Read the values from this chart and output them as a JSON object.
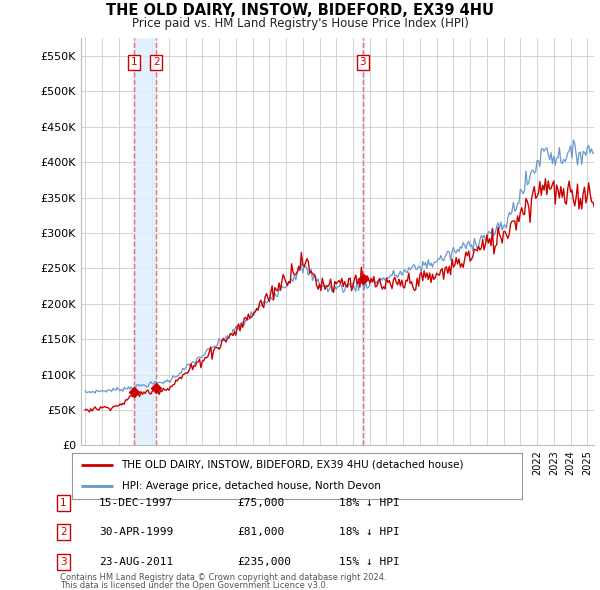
{
  "title": "THE OLD DAIRY, INSTOW, BIDEFORD, EX39 4HU",
  "subtitle": "Price paid vs. HM Land Registry's House Price Index (HPI)",
  "ylim": [
    0,
    575000
  ],
  "yticks": [
    0,
    50000,
    100000,
    150000,
    200000,
    250000,
    300000,
    350000,
    400000,
    450000,
    500000,
    550000
  ],
  "ytick_labels": [
    "£0",
    "£50K",
    "£100K",
    "£150K",
    "£200K",
    "£250K",
    "£300K",
    "£350K",
    "£400K",
    "£450K",
    "£500K",
    "£550K"
  ],
  "sale_prices": [
    75000,
    81000,
    235000
  ],
  "sale_labels": [
    "1",
    "2",
    "3"
  ],
  "legend_line1": "THE OLD DAIRY, INSTOW, BIDEFORD, EX39 4HU (detached house)",
  "legend_line2": "HPI: Average price, detached house, North Devon",
  "table_rows": [
    [
      "1",
      "15-DEC-1997",
      "£75,000",
      "18% ↓ HPI"
    ],
    [
      "2",
      "30-APR-1999",
      "£81,000",
      "18% ↓ HPI"
    ],
    [
      "3",
      "23-AUG-2011",
      "£235,000",
      "15% ↓ HPI"
    ]
  ],
  "footnote1": "Contains HM Land Registry data © Crown copyright and database right 2024.",
  "footnote2": "This data is licensed under the Open Government Licence v3.0.",
  "red_color": "#cc0000",
  "blue_color": "#6699cc",
  "dashed_color": "#e87070",
  "shade_color": "#ddeeff",
  "background_color": "#ffffff",
  "grid_color": "#cccccc"
}
